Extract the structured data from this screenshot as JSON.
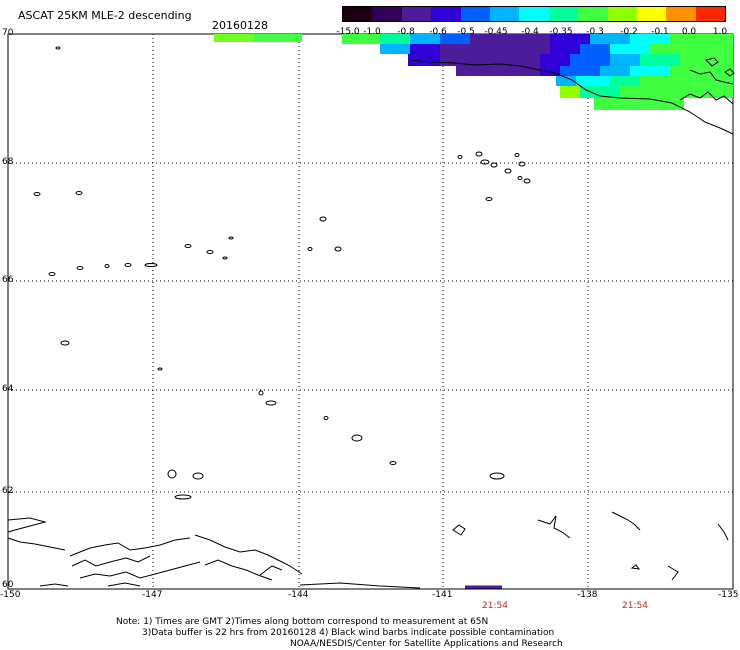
{
  "header": {
    "title": "ASCAT 25KM MLE-2 descending",
    "date": "20160128"
  },
  "colorbar": {
    "ticks": [
      "-15.0",
      "-1.0",
      "-0.8",
      "-0.6",
      "-0.5",
      "-0.45",
      "-0.4",
      "-0.35",
      "-0.3",
      "-0.2",
      "-0.1",
      "0.0",
      "1.0"
    ],
    "colors": [
      "#1a0010",
      "#32005a",
      "#4c1c9a",
      "#3000d8",
      "#0060ff",
      "#00b4ff",
      "#00ffff",
      "#00ff9c",
      "#40ff40",
      "#90ff00",
      "#ffff00",
      "#ff9000",
      "#ff2800"
    ]
  },
  "map": {
    "lat_labels": [
      "70",
      "68",
      "66",
      "64",
      "62",
      "60"
    ],
    "lon_labels": [
      "-150",
      "-147",
      "-144",
      "-141",
      "-138",
      "-135"
    ],
    "lat_range": [
      60,
      70
    ],
    "lon_range": [
      -150,
      -135
    ],
    "pass_times": [
      "21:54",
      "21:54"
    ]
  },
  "notes": {
    "line1": "Note: 1) Times are GMT 2)Times along bottom correspond to measurement at 65N",
    "line2": "3)Data buffer is 22 hrs from 20160128 4) Black wind barbs indicate possible contamination",
    "line3": "NOAA/NESDIS/Center for Satellite Applications and Research"
  }
}
